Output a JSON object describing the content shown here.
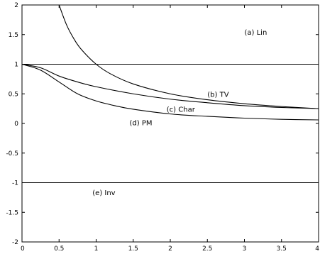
{
  "chart_data": {
    "type": "line",
    "title": "",
    "xlabel": "",
    "ylabel": "",
    "xlim": [
      0,
      4
    ],
    "ylim": [
      -2,
      2
    ],
    "grid": false,
    "xticks": [
      "0",
      "0.5",
      "1",
      "1.5",
      "2",
      "2.5",
      "3",
      "3.5",
      "4"
    ],
    "yticks": [
      "2",
      "1.5",
      "1",
      "0.5",
      "0",
      "-0.5",
      "-1",
      "-1.5",
      "-2"
    ],
    "series": [
      {
        "name": "(a) Lin",
        "x": [
          0,
          4
        ],
        "y": [
          1,
          1
        ]
      },
      {
        "name": "(b) TV",
        "x": [
          0.5,
          0.6,
          0.7,
          0.8,
          1.0,
          1.2,
          1.5,
          2.0,
          2.5,
          3.0,
          3.5,
          4.0
        ],
        "y": [
          2.0,
          1.667,
          1.429,
          1.25,
          1.0,
          0.833,
          0.667,
          0.5,
          0.4,
          0.333,
          0.286,
          0.25
        ]
      },
      {
        "name": "(c) Char",
        "x": [
          0,
          0.25,
          0.5,
          0.75,
          1.0,
          1.5,
          2.0,
          2.5,
          3.0,
          3.5,
          4.0
        ],
        "y": [
          1.0,
          0.94,
          0.8,
          0.7,
          0.62,
          0.5,
          0.41,
          0.35,
          0.3,
          0.27,
          0.25
        ]
      },
      {
        "name": "(d) PM",
        "x": [
          0,
          0.25,
          0.5,
          0.75,
          1.0,
          1.25,
          1.5,
          2.0,
          2.5,
          3.0,
          3.5,
          4.0
        ],
        "y": [
          1.0,
          0.9,
          0.7,
          0.5,
          0.38,
          0.3,
          0.24,
          0.16,
          0.12,
          0.09,
          0.07,
          0.06
        ]
      },
      {
        "name": "(e) Inv",
        "x": [
          0,
          4
        ],
        "y": [
          -1,
          -1
        ]
      }
    ],
    "annotations": [
      {
        "text": "(a) Lin",
        "x": 3.0,
        "y": 1.5
      },
      {
        "text": "(b) TV",
        "x": 2.5,
        "y": 0.45
      },
      {
        "text": "(c) Char",
        "x": 1.95,
        "y": 0.2
      },
      {
        "text": "(d) PM",
        "x": 1.45,
        "y": -0.03
      },
      {
        "text": "(e) Inv",
        "x": 0.95,
        "y": -1.21
      }
    ]
  }
}
